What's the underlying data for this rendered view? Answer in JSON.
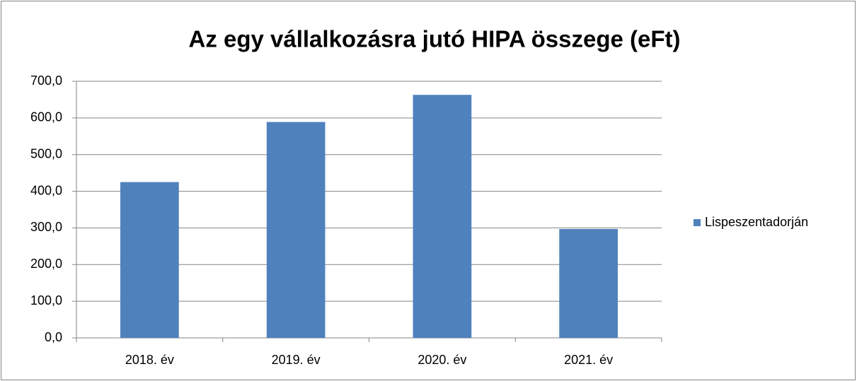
{
  "chart_data": {
    "type": "bar",
    "title": "Az egy vállalkozásra jutó HIPA összege (eFt)",
    "categories": [
      "2018. év",
      "2019. év",
      "2020. év",
      "2021. év"
    ],
    "series": [
      {
        "name": "Lispeszentadorján",
        "color": "#4f81bd",
        "values": [
          425,
          589,
          663,
          297
        ]
      }
    ],
    "ylim": [
      0,
      700
    ],
    "yticks": [
      {
        "value": 0,
        "label": "0,0"
      },
      {
        "value": 100,
        "label": "100,0"
      },
      {
        "value": 200,
        "label": "200,0"
      },
      {
        "value": 300,
        "label": "300,0"
      },
      {
        "value": 400,
        "label": "400,0"
      },
      {
        "value": 500,
        "label": "500,0"
      },
      {
        "value": 600,
        "label": "600,0"
      },
      {
        "value": 700,
        "label": "700,0"
      }
    ],
    "grid": true,
    "legend": "right"
  }
}
